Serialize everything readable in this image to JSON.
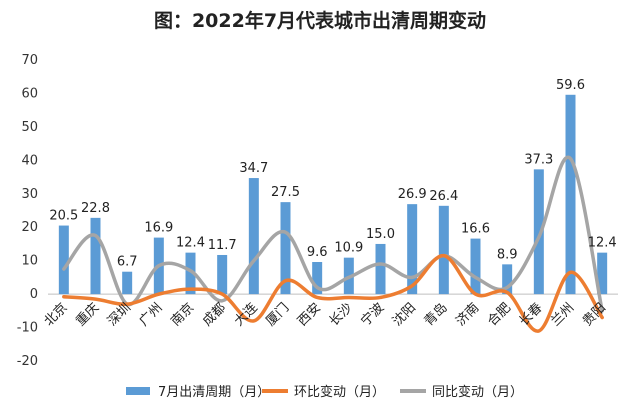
{
  "chart_data": {
    "type": "bar",
    "title": "图：2022年7月代表城市出清周期变动",
    "categories": [
      "北京",
      "重庆",
      "深圳",
      "广州",
      "南京",
      "成都",
      "大连",
      "厦门",
      "西安",
      "长沙",
      "宁波",
      "沈阳",
      "青岛",
      "济南",
      "合肥",
      "长春",
      "兰州",
      "贵阳"
    ],
    "ylim": [
      -20,
      70
    ],
    "yticks": [
      -20,
      -10,
      0,
      10,
      20,
      30,
      40,
      50,
      60,
      70
    ],
    "grid": false,
    "legend_position": "bottom",
    "series": [
      {
        "name": "7月出清周期（月）",
        "type": "bar",
        "color": "#5b9bd5",
        "values": [
          20.5,
          22.8,
          6.7,
          16.9,
          12.4,
          11.7,
          34.7,
          27.5,
          9.6,
          10.9,
          15.0,
          26.9,
          26.4,
          16.6,
          8.9,
          37.3,
          59.6,
          12.4
        ],
        "labels": [
          "20.5",
          "22.8",
          "6.7",
          "16.9",
          "12.4",
          "11.7",
          "34.7",
          "27.5",
          "9.6",
          "10.9",
          "15.0",
          "26.9",
          "26.4",
          "16.6",
          "8.9",
          "37.3",
          "59.6",
          "12.4"
        ]
      },
      {
        "name": "环比变动（月）",
        "type": "line",
        "color": "#ed7d31",
        "values": [
          -0.8,
          -1.5,
          -3.0,
          0,
          1.5,
          0,
          -8.0,
          4.0,
          -1.0,
          -1.0,
          -1.0,
          2.5,
          11.5,
          0,
          0.5,
          -11.0,
          6.5,
          -7.0
        ]
      },
      {
        "name": "同比变动（月）",
        "type": "line",
        "color": "#a5a5a5",
        "values": [
          7.5,
          17.5,
          -3.0,
          8.5,
          7.0,
          -2.0,
          10.0,
          18.5,
          2.0,
          5.0,
          9.0,
          5.0,
          11.5,
          5.0,
          2.0,
          17.0,
          40.5,
          -5.0
        ]
      }
    ]
  }
}
